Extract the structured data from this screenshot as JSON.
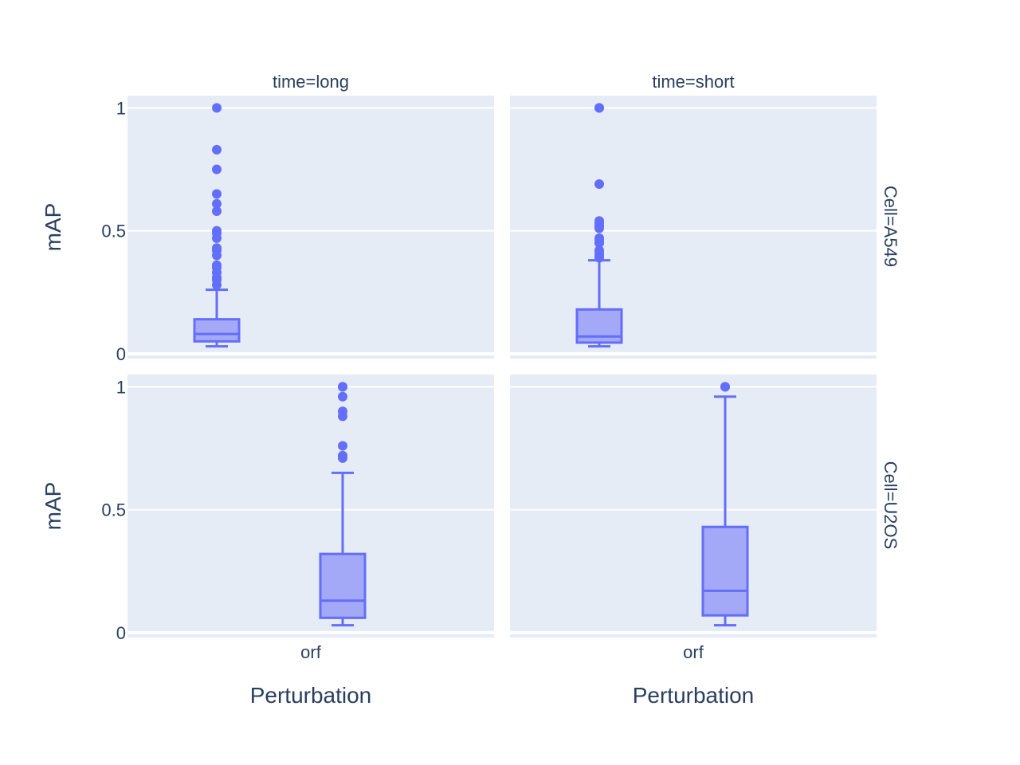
{
  "chart_data": {
    "type": "box",
    "ylim": [
      -0.02,
      1.05
    ],
    "yticks": [
      {
        "value": 0,
        "label": "0"
      },
      {
        "value": 0.5,
        "label": "0.5"
      },
      {
        "value": 1,
        "label": "1"
      }
    ],
    "x_tick_label": "orf",
    "x_title": "Perturbation",
    "y_title": "mAP",
    "column_labels": [
      "time=long",
      "time=short"
    ],
    "row_labels": [
      "Cell=A549",
      "Cell=U2OS"
    ],
    "colors": {
      "line": "#636efa",
      "fill": "#a3a9f7",
      "plot_bg": "#e5ecf6",
      "text": "#2a3f5f"
    },
    "panels": [
      {
        "row": 0,
        "col": 0,
        "position": "left",
        "box": {
          "lower_whisker": 0.03,
          "q1": 0.05,
          "median": 0.08,
          "q3": 0.14,
          "upper_whisker": 0.26
        },
        "outliers": [
          1.0,
          0.83,
          0.75,
          0.65,
          0.61,
          0.58,
          0.5,
          0.49,
          0.47,
          0.43,
          0.42,
          0.4,
          0.36,
          0.35,
          0.33,
          0.31,
          0.3,
          0.28
        ]
      },
      {
        "row": 0,
        "col": 1,
        "position": "left",
        "box": {
          "lower_whisker": 0.03,
          "q1": 0.045,
          "median": 0.07,
          "q3": 0.18,
          "upper_whisker": 0.38
        },
        "outliers": [
          1.0,
          1.0,
          0.69,
          0.54,
          0.53,
          0.52,
          0.51,
          0.47,
          0.46,
          0.45,
          0.42,
          0.41,
          0.4,
          0.39
        ]
      },
      {
        "row": 1,
        "col": 0,
        "position": "right",
        "box": {
          "lower_whisker": 0.03,
          "q1": 0.06,
          "median": 0.13,
          "q3": 0.32,
          "upper_whisker": 0.65
        },
        "outliers": [
          1.0,
          1.0,
          0.96,
          0.9,
          0.88,
          0.76,
          0.72,
          0.71
        ]
      },
      {
        "row": 1,
        "col": 1,
        "position": "right",
        "box": {
          "lower_whisker": 0.03,
          "q1": 0.07,
          "median": 0.17,
          "q3": 0.43,
          "upper_whisker": 0.96
        },
        "outliers": [
          1.0,
          1.0
        ]
      }
    ]
  }
}
